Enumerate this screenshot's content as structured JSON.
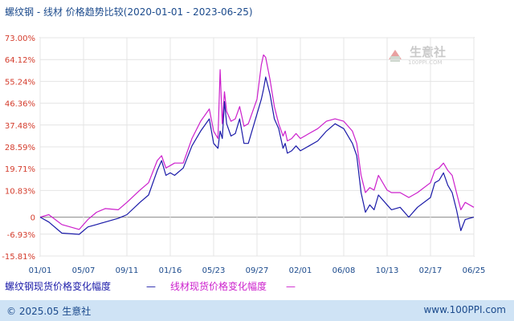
{
  "title": "螺纹钢 - 线材 价格趋势比较(2020-01-01 - 2023-06-25)",
  "watermark": {
    "name": "生意社",
    "site": "100PPI.COM"
  },
  "footer": {
    "copyright": "© 2025.05 生意社",
    "site": "www.100PPI.com"
  },
  "colors": {
    "series1": "#1a1aa8",
    "series2": "#cc1fcc",
    "axis_text": "#d43c2c",
    "brand": "#1b4a8c"
  },
  "chart_data": {
    "type": "line",
    "title": "螺纹钢 - 线材 价格趋势比较(2020-01-01 - 2023-06-25)",
    "ylim": [
      -15.81,
      73.0
    ],
    "yticks": [
      "73.00%",
      "64.12%",
      "55.24%",
      "46.36%",
      "37.48%",
      "28.59%",
      "19.71%",
      "10.83%",
      "0",
      "-6.93%",
      "-15.81%"
    ],
    "ytick_values": [
      73.0,
      64.12,
      55.24,
      46.36,
      37.48,
      28.59,
      19.71,
      10.83,
      0,
      -6.93,
      -15.81
    ],
    "xticks": [
      "01/01",
      "05/07",
      "09/11",
      "01/16",
      "05/23",
      "09/27",
      "02/01",
      "06/08",
      "10/13",
      "02/17",
      "06/25"
    ],
    "series": [
      {
        "name": "螺纹钢现货价格变化幅度",
        "legend_mark": "—",
        "x": [
          0,
          0.02,
          0.05,
          0.09,
          0.11,
          0.13,
          0.15,
          0.18,
          0.2,
          0.23,
          0.25,
          0.27,
          0.28,
          0.29,
          0.3,
          0.31,
          0.33,
          0.35,
          0.37,
          0.39,
          0.4,
          0.41,
          0.415,
          0.42,
          0.425,
          0.43,
          0.44,
          0.45,
          0.46,
          0.47,
          0.48,
          0.5,
          0.51,
          0.515,
          0.52,
          0.53,
          0.54,
          0.55,
          0.56,
          0.565,
          0.57,
          0.58,
          0.59,
          0.6,
          0.62,
          0.64,
          0.66,
          0.68,
          0.7,
          0.72,
          0.73,
          0.74,
          0.75,
          0.76,
          0.77,
          0.78,
          0.8,
          0.81,
          0.83,
          0.85,
          0.87,
          0.9,
          0.91,
          0.92,
          0.93,
          0.94,
          0.95,
          0.96,
          0.97,
          0.98,
          1.0
        ],
        "values": [
          0,
          -2.0,
          -6.5,
          -7.0,
          -4.0,
          -3.0,
          -2.0,
          -0.5,
          1.0,
          6.0,
          9.0,
          19.0,
          23.0,
          17.0,
          18.0,
          17.0,
          20.0,
          29.0,
          35.0,
          40.0,
          30.0,
          28.0,
          35.0,
          32.0,
          47.0,
          38.0,
          33.0,
          34.0,
          40.0,
          30.0,
          30.0,
          42.0,
          48.0,
          52.0,
          57.0,
          50.0,
          40.0,
          36.0,
          28.0,
          30.0,
          26.0,
          27.0,
          29.0,
          27.0,
          29.0,
          31.0,
          35.0,
          38.0,
          36.0,
          30.0,
          25.0,
          10.0,
          2.0,
          5.0,
          3.0,
          9.0,
          5.0,
          3.0,
          4.0,
          0,
          4.0,
          8.0,
          14.0,
          15.0,
          18.0,
          13.0,
          10.0,
          3.0,
          -5.5,
          -1.0,
          0
        ],
        "color": "#1a1aa8"
      },
      {
        "name": "线材现货价格变化幅度",
        "legend_mark": "—",
        "x": [
          0,
          0.02,
          0.05,
          0.09,
          0.11,
          0.13,
          0.15,
          0.18,
          0.2,
          0.23,
          0.25,
          0.27,
          0.28,
          0.29,
          0.3,
          0.31,
          0.33,
          0.35,
          0.37,
          0.39,
          0.4,
          0.41,
          0.415,
          0.42,
          0.425,
          0.43,
          0.44,
          0.45,
          0.46,
          0.47,
          0.48,
          0.5,
          0.51,
          0.515,
          0.52,
          0.53,
          0.54,
          0.55,
          0.56,
          0.565,
          0.57,
          0.58,
          0.59,
          0.6,
          0.62,
          0.64,
          0.66,
          0.68,
          0.7,
          0.72,
          0.73,
          0.74,
          0.75,
          0.76,
          0.77,
          0.78,
          0.8,
          0.81,
          0.83,
          0.85,
          0.87,
          0.9,
          0.91,
          0.92,
          0.93,
          0.94,
          0.95,
          0.96,
          0.97,
          0.98,
          1.0
        ],
        "values": [
          0,
          1.0,
          -3.0,
          -5.0,
          -1.0,
          2.0,
          3.5,
          3.0,
          6.0,
          11.0,
          14.0,
          23.0,
          25.0,
          20.0,
          21.0,
          22.0,
          22.0,
          32.0,
          39.0,
          44.0,
          35.0,
          32.0,
          60.0,
          38.0,
          51.0,
          43.0,
          39.0,
          40.0,
          45.0,
          37.0,
          38.0,
          48.0,
          62.0,
          66.0,
          65.0,
          56.0,
          45.0,
          38.0,
          33.0,
          35.0,
          31.0,
          32.0,
          34.0,
          32.0,
          34.0,
          36.0,
          39.0,
          40.0,
          39.0,
          35.0,
          30.0,
          17.0,
          10.0,
          12.0,
          11.0,
          17.0,
          11.0,
          10.0,
          10.0,
          8.0,
          10.0,
          14.0,
          19.0,
          20.0,
          22.0,
          19.0,
          17.0,
          10.0,
          3.0,
          6.0,
          4.0
        ],
        "color": "#cc1fcc"
      }
    ]
  }
}
